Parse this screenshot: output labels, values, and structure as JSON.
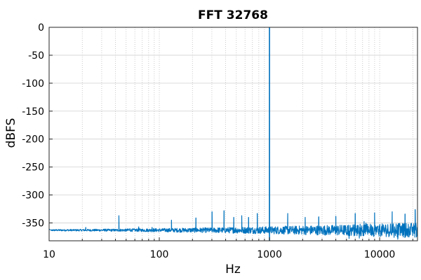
{
  "chart_data": {
    "type": "line",
    "title": "FFT 32768",
    "xlabel": "Hz",
    "ylabel": "dBFS",
    "x_scale": "log",
    "xlim": [
      10,
      22050
    ],
    "ylim": [
      -382,
      0
    ],
    "x_ticks": [
      10,
      100,
      1000,
      10000
    ],
    "x_tick_labels": [
      "10",
      "100",
      "1000",
      "10000"
    ],
    "y_ticks": [
      0,
      -50,
      -100,
      -150,
      -200,
      -250,
      -300,
      -350
    ],
    "y_tick_labels": [
      "0",
      "-50",
      "-100",
      "-150",
      "-200",
      "-250",
      "-300",
      "-350"
    ],
    "grid": true,
    "legend": "none",
    "series": [
      {
        "color": "#0072bd",
        "noise_floor_db": -363,
        "tone": {
          "x": 1000,
          "y": 0
        },
        "spurs": [
          {
            "x": 21.5,
            "y": -358
          },
          {
            "x": 32,
            "y": -361
          },
          {
            "x": 43,
            "y": -337
          },
          {
            "x": 54,
            "y": -360
          },
          {
            "x": 65,
            "y": -357
          },
          {
            "x": 86,
            "y": -358
          },
          {
            "x": 129,
            "y": -345
          },
          {
            "x": 215,
            "y": -341
          },
          {
            "x": 301,
            "y": -330
          },
          {
            "x": 387,
            "y": -328
          },
          {
            "x": 474,
            "y": -340
          },
          {
            "x": 560,
            "y": -337
          },
          {
            "x": 646,
            "y": -340
          },
          {
            "x": 775,
            "y": -333
          },
          {
            "x": 1464,
            "y": -333
          },
          {
            "x": 2110,
            "y": -340
          },
          {
            "x": 2800,
            "y": -339
          },
          {
            "x": 4000,
            "y": -338
          },
          {
            "x": 6000,
            "y": -333
          },
          {
            "x": 9000,
            "y": -332
          },
          {
            "x": 13000,
            "y": -330
          },
          {
            "x": 17000,
            "y": -334
          },
          {
            "x": 21000,
            "y": -326
          }
        ]
      }
    ]
  }
}
